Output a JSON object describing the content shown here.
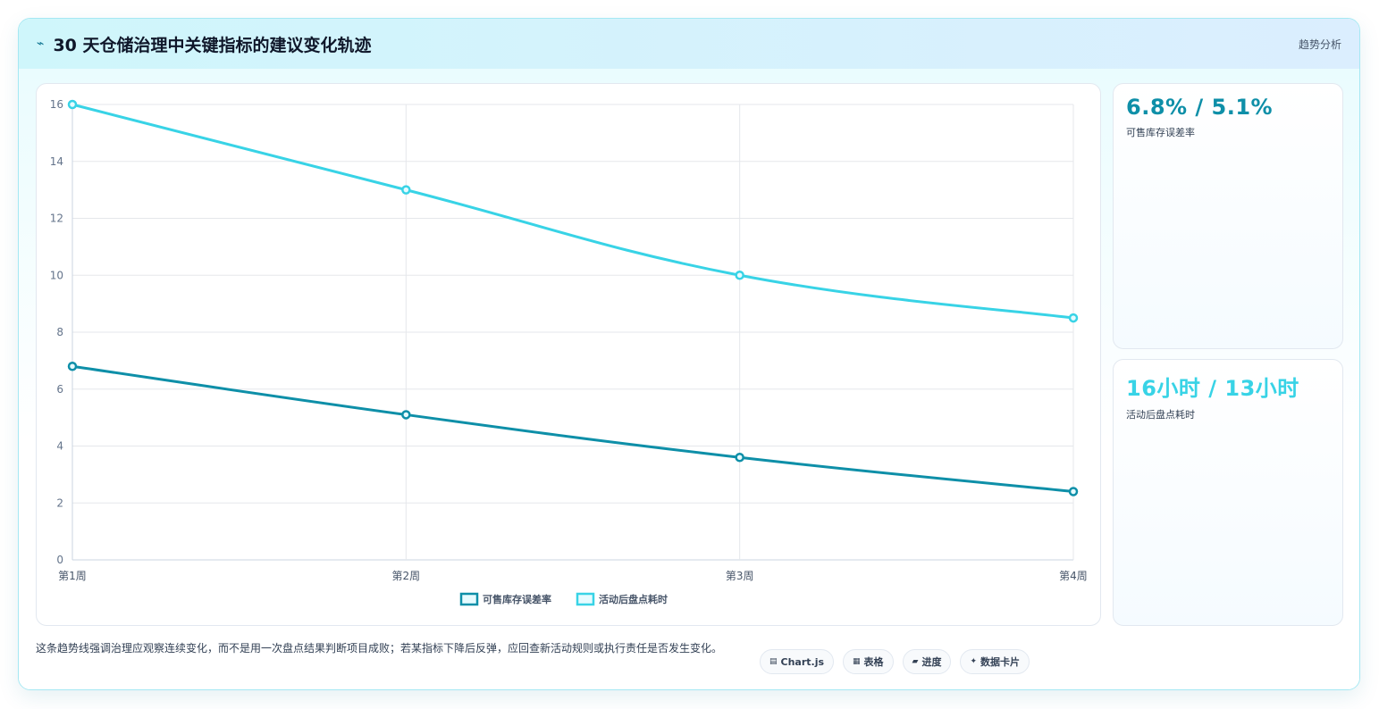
{
  "header": {
    "icon": "chart-bolt-icon",
    "title": "30 天仓储治理中关键指标的建议变化轨迹",
    "tag": "趋势分析"
  },
  "kpis": [
    {
      "value": "6.8% / 5.1%",
      "label": "可售库存误差率",
      "color": "#0e8fa8"
    },
    {
      "value": "16小时 / 13小时",
      "label": "活动后盘点耗时",
      "color": "#38d3e6"
    }
  ],
  "footer": {
    "text": "这条趋势线强调治理应观察连续变化，而不是用一次盘点结果判断项目成败；若某指标下降后反弹，应回查新活动规则或执行责任是否发生变化。"
  },
  "chips": [
    {
      "icon": "table-icon",
      "glyph": "▤",
      "label": "Chart.js"
    },
    {
      "icon": "grid-icon",
      "glyph": "▦",
      "label": "表格"
    },
    {
      "icon": "progress-icon",
      "glyph": "▰",
      "label": "进度"
    },
    {
      "icon": "sparkle-icon",
      "glyph": "✦",
      "label": "数据卡片"
    }
  ],
  "chart_data": {
    "type": "line",
    "categories": [
      "第1周",
      "第2周",
      "第3周",
      "第4周"
    ],
    "series": [
      {
        "name": "可售库存误差率",
        "values": [
          6.8,
          5.1,
          3.6,
          2.4
        ],
        "color": "#0e8fa8"
      },
      {
        "name": "活动后盘点耗时",
        "values": [
          16,
          13,
          10,
          8.5
        ],
        "color": "#38d3e6"
      }
    ],
    "ylim": [
      0,
      16
    ],
    "yticks": [
      0,
      2,
      4,
      6,
      8,
      10,
      12,
      14,
      16
    ],
    "grid": true,
    "legend": "bottom"
  }
}
